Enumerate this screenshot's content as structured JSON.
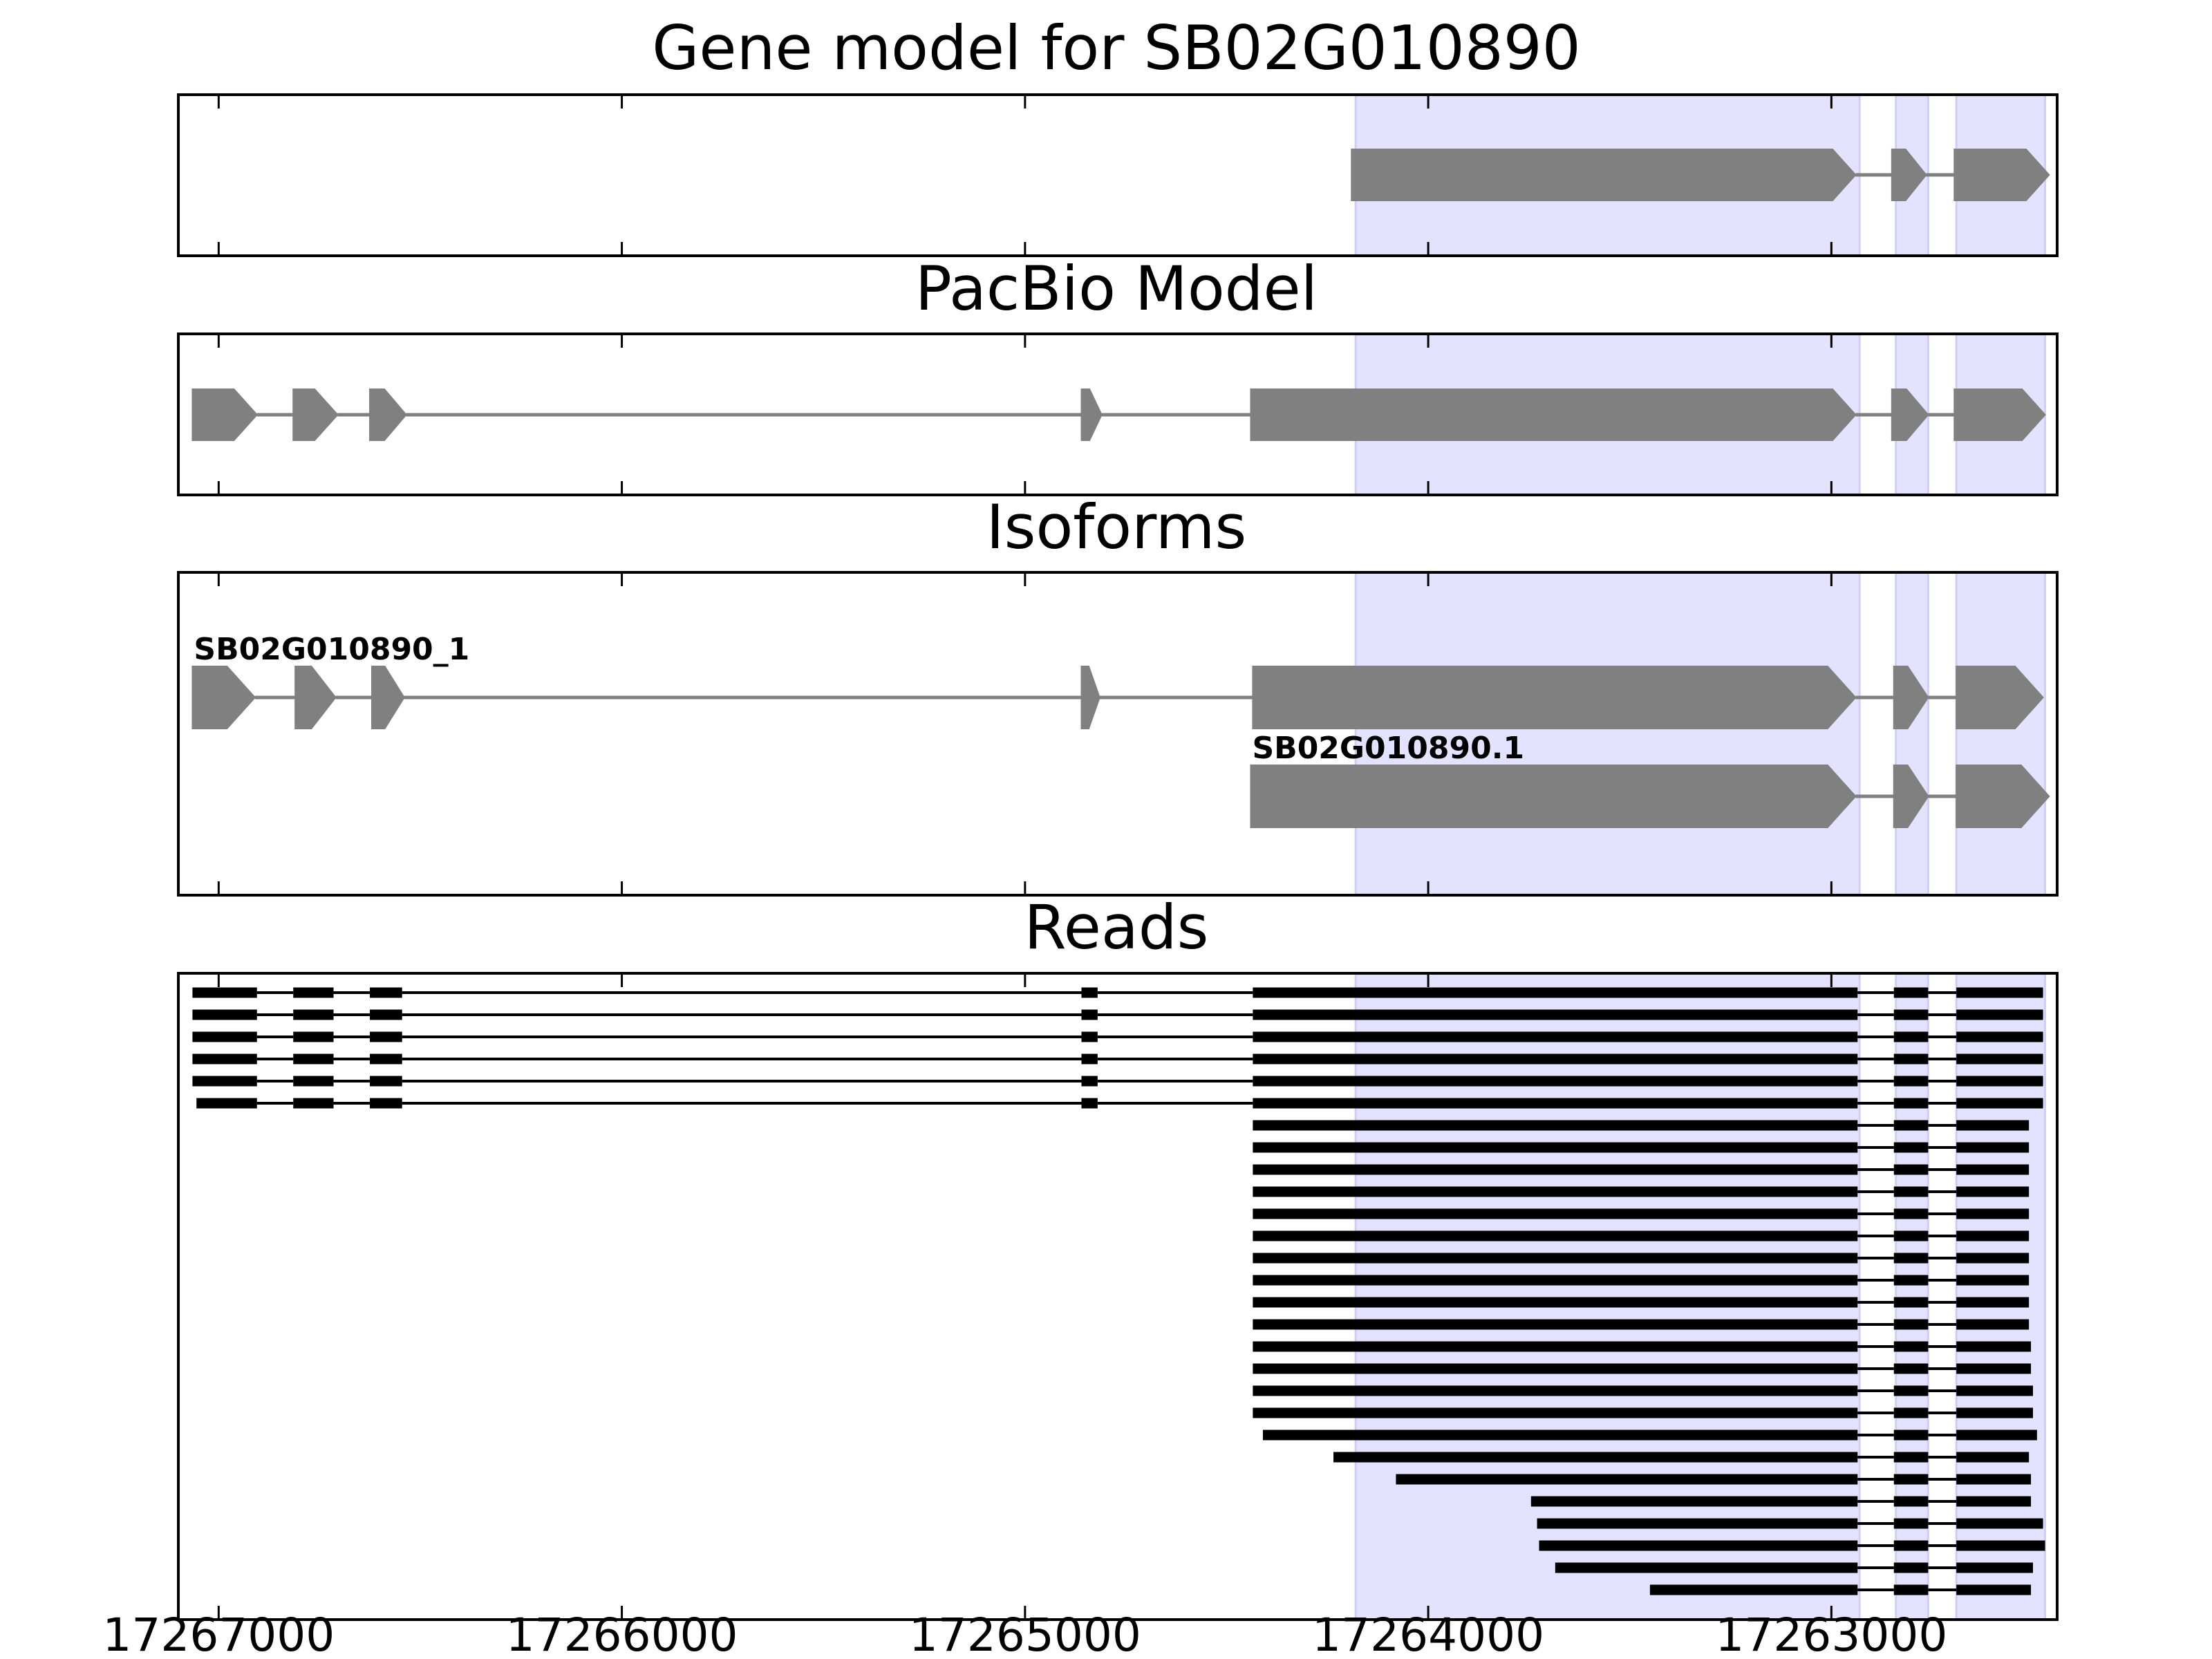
{
  "chart_data": {
    "type": "gene-model-tracks",
    "xlim": [
      17267100,
      17262440
    ],
    "x_ticks": [
      17267000,
      17266000,
      17265000,
      17264000,
      17263000
    ],
    "x_tick_labels": [
      "17267000",
      "17266000",
      "17265000",
      "17264000",
      "17263000"
    ],
    "highlight_regions": [
      [
        17264180,
        17262930
      ],
      [
        17262840,
        17262760
      ],
      [
        17262690,
        17262470
      ]
    ],
    "panels": [
      {
        "key": "gene",
        "title": "Gene model for SB02G010890",
        "rows": 1,
        "transcripts": [
          {
            "label": "",
            "exons": [
              [
                17264190,
                17262940
              ],
              [
                17262850,
                17262765
              ],
              [
                17262695,
                17262460
              ]
            ]
          }
        ]
      },
      {
        "key": "pacbio",
        "title": "PacBio Model",
        "rows": 1,
        "transcripts": [
          {
            "label": "",
            "exons": [
              [
                17267065,
                17266905
              ],
              [
                17266815,
                17266705
              ],
              [
                17266625,
                17266535
              ],
              [
                17264860,
                17264810
              ],
              [
                17264440,
                17262940
              ],
              [
                17262850,
                17262760
              ],
              [
                17262695,
                17262470
              ]
            ]
          }
        ]
      },
      {
        "key": "isoforms",
        "title": "Isoforms",
        "rows": 2,
        "transcripts": [
          {
            "label": "SB02G010890_1",
            "exons": [
              [
                17267065,
                17266910
              ],
              [
                17266810,
                17266710
              ],
              [
                17266620,
                17266540
              ],
              [
                17264860,
                17264815
              ],
              [
                17264435,
                17262940
              ],
              [
                17262845,
                17262760
              ],
              [
                17262690,
                17262475
              ]
            ]
          },
          {
            "label": "SB02G010890.1",
            "exons": [
              [
                17264440,
                17262940
              ],
              [
                17262845,
                17262760
              ],
              [
                17262690,
                17262460
              ]
            ]
          }
        ]
      },
      {
        "key": "reads",
        "title": "Reads",
        "rows": 28,
        "reads": [
          [
            [
              17267065,
              17266905
            ],
            [
              17266815,
              17266715
            ],
            [
              17266625,
              17266545
            ],
            [
              17264860,
              17264820
            ],
            [
              17264435,
              17262935
            ],
            [
              17262845,
              17262760
            ],
            [
              17262690,
              17262475
            ]
          ],
          [
            [
              17267065,
              17266905
            ],
            [
              17266815,
              17266715
            ],
            [
              17266625,
              17266545
            ],
            [
              17264860,
              17264820
            ],
            [
              17264435,
              17262935
            ],
            [
              17262845,
              17262760
            ],
            [
              17262690,
              17262475
            ]
          ],
          [
            [
              17267065,
              17266905
            ],
            [
              17266815,
              17266715
            ],
            [
              17266625,
              17266545
            ],
            [
              17264860,
              17264820
            ],
            [
              17264435,
              17262935
            ],
            [
              17262845,
              17262760
            ],
            [
              17262690,
              17262475
            ]
          ],
          [
            [
              17267065,
              17266905
            ],
            [
              17266815,
              17266715
            ],
            [
              17266625,
              17266545
            ],
            [
              17264860,
              17264820
            ],
            [
              17264435,
              17262935
            ],
            [
              17262845,
              17262760
            ],
            [
              17262690,
              17262475
            ]
          ],
          [
            [
              17267065,
              17266905
            ],
            [
              17266815,
              17266715
            ],
            [
              17266625,
              17266545
            ],
            [
              17264860,
              17264820
            ],
            [
              17264435,
              17262935
            ],
            [
              17262845,
              17262760
            ],
            [
              17262690,
              17262475
            ]
          ],
          [
            [
              17267055,
              17266905
            ],
            [
              17266815,
              17266715
            ],
            [
              17266625,
              17266545
            ],
            [
              17264860,
              17264820
            ],
            [
              17264435,
              17262935
            ],
            [
              17262845,
              17262760
            ],
            [
              17262690,
              17262475
            ]
          ],
          [
            [
              17264435,
              17262935
            ],
            [
              17262845,
              17262760
            ],
            [
              17262690,
              17262510
            ]
          ],
          [
            [
              17264435,
              17262935
            ],
            [
              17262845,
              17262760
            ],
            [
              17262690,
              17262510
            ]
          ],
          [
            [
              17264435,
              17262935
            ],
            [
              17262845,
              17262760
            ],
            [
              17262690,
              17262510
            ]
          ],
          [
            [
              17264435,
              17262935
            ],
            [
              17262845,
              17262760
            ],
            [
              17262690,
              17262510
            ]
          ],
          [
            [
              17264435,
              17262935
            ],
            [
              17262845,
              17262760
            ],
            [
              17262690,
              17262510
            ]
          ],
          [
            [
              17264435,
              17262935
            ],
            [
              17262845,
              17262760
            ],
            [
              17262690,
              17262510
            ]
          ],
          [
            [
              17264435,
              17262935
            ],
            [
              17262845,
              17262760
            ],
            [
              17262690,
              17262510
            ]
          ],
          [
            [
              17264435,
              17262935
            ],
            [
              17262845,
              17262760
            ],
            [
              17262690,
              17262510
            ]
          ],
          [
            [
              17264435,
              17262935
            ],
            [
              17262845,
              17262760
            ],
            [
              17262690,
              17262510
            ]
          ],
          [
            [
              17264435,
              17262935
            ],
            [
              17262845,
              17262760
            ],
            [
              17262690,
              17262510
            ]
          ],
          [
            [
              17264435,
              17262935
            ],
            [
              17262845,
              17262760
            ],
            [
              17262690,
              17262505
            ]
          ],
          [
            [
              17264435,
              17262935
            ],
            [
              17262845,
              17262760
            ],
            [
              17262690,
              17262505
            ]
          ],
          [
            [
              17264435,
              17262935
            ],
            [
              17262845,
              17262760
            ],
            [
              17262690,
              17262500
            ]
          ],
          [
            [
              17264435,
              17262935
            ],
            [
              17262845,
              17262760
            ],
            [
              17262690,
              17262500
            ]
          ],
          [
            [
              17264410,
              17262935
            ],
            [
              17262845,
              17262760
            ],
            [
              17262690,
              17262490
            ]
          ],
          [
            [
              17264235,
              17262935
            ],
            [
              17262845,
              17262760
            ],
            [
              17262690,
              17262510
            ]
          ],
          [
            [
              17264080,
              17262935
            ],
            [
              17262845,
              17262760
            ],
            [
              17262690,
              17262505
            ]
          ],
          [
            [
              17263745,
              17262935
            ],
            [
              17262845,
              17262760
            ],
            [
              17262690,
              17262505
            ]
          ],
          [
            [
              17263730,
              17262935
            ],
            [
              17262845,
              17262760
            ],
            [
              17262690,
              17262475
            ]
          ],
          [
            [
              17263725,
              17262935
            ],
            [
              17262845,
              17262760
            ],
            [
              17262690,
              17262470
            ]
          ],
          [
            [
              17263685,
              17262935
            ],
            [
              17262845,
              17262760
            ],
            [
              17262690,
              17262500
            ]
          ],
          [
            [
              17263450,
              17262935
            ],
            [
              17262845,
              17262760
            ],
            [
              17262690,
              17262505
            ]
          ]
        ]
      }
    ]
  }
}
